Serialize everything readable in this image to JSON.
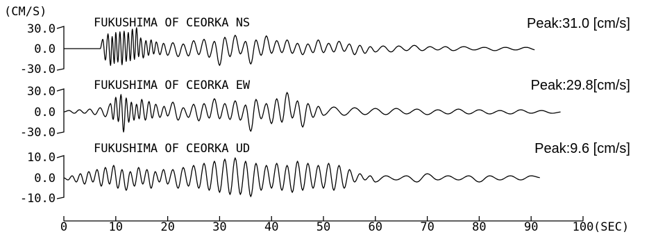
{
  "chart_data": {
    "type": "line",
    "ylabel": "(CM/S)",
    "xlabel": "(SEC)",
    "xlim": [
      0,
      100
    ],
    "x_ticks": [
      "0",
      "10",
      "20",
      "30",
      "40",
      "50",
      "60",
      "70",
      "80",
      "90",
      "100"
    ],
    "grid": false,
    "series": [
      {
        "name": "FUKUSHIMA OF CEORKA NS",
        "peak_label": "Peak:31.0 [cm/s]",
        "ylim": [
          -30,
          30
        ],
        "y_ticks": [
          "30.0",
          "0.0",
          "-30.0"
        ],
        "t": [
          0,
          7,
          7.5,
          8,
          8.5,
          9,
          9.3,
          9.7,
          10,
          10.4,
          10.8,
          11.2,
          11.6,
          12,
          12.4,
          12.8,
          13.2,
          13.6,
          14,
          14.4,
          14.8,
          15.3,
          15.8,
          16.3,
          16.8,
          17.3,
          17.8,
          18.5,
          19.2,
          20,
          21,
          22,
          23,
          24,
          25,
          26,
          27,
          28,
          29,
          30,
          31,
          32,
          33,
          34,
          35,
          36,
          37,
          38,
          39,
          40,
          41,
          42,
          43,
          44,
          45,
          46,
          47,
          48,
          49,
          50,
          51,
          52,
          53,
          54,
          55,
          56,
          57,
          58,
          59,
          60,
          61.5,
          63,
          64.5,
          66,
          67.5,
          69,
          70.5,
          72,
          73.5,
          75,
          77,
          79,
          81,
          83,
          85,
          87,
          89,
          91,
          93,
          95,
          97,
          99
        ],
        "v": [
          0,
          0,
          14,
          -17,
          22,
          -25,
          18,
          -22,
          24,
          -20,
          25,
          -24,
          26,
          -19,
          24,
          -18,
          29,
          -16,
          31,
          -12,
          16,
          -14,
          12,
          -10,
          13,
          -8,
          10,
          -9,
          8,
          -10,
          9,
          -12,
          7,
          -11,
          12,
          -9,
          14,
          -13,
          11,
          -25,
          17,
          -12,
          20,
          -8,
          11,
          -23,
          13,
          -10,
          19,
          -7,
          12,
          -6,
          13,
          -7,
          8,
          -9,
          7,
          -6,
          13,
          -6,
          8,
          -5,
          11,
          -4,
          7,
          -9,
          5,
          -7,
          3,
          -5,
          4,
          -5,
          4,
          -3,
          5,
          -3,
          3,
          -2,
          3,
          -3,
          3,
          -2,
          2,
          -3,
          2,
          -2,
          2,
          -2
        ]
      },
      {
        "name": "FUKUSHIMA OF CEORKA EW",
        "peak_label": "Peak:29.8[cm/s]",
        "ylim": [
          -30,
          30
        ],
        "y_ticks": [
          "30.0",
          "0.0",
          "-30.0"
        ],
        "t": [
          0,
          1,
          2,
          3,
          4,
          5,
          6,
          7,
          8,
          9,
          9.5,
          10,
          10.5,
          11,
          11.5,
          12,
          12.5,
          13,
          13.5,
          14,
          14.5,
          15,
          15.7,
          16.4,
          17,
          17.7,
          18.5,
          19.3,
          20,
          21,
          22,
          23,
          24,
          25,
          26,
          27,
          28,
          29,
          30,
          31,
          32,
          33,
          34,
          35,
          36,
          37,
          38,
          39,
          40,
          41,
          42,
          43,
          44,
          45,
          46,
          47,
          48,
          49,
          50,
          52,
          54,
          56,
          58,
          60,
          62,
          64,
          66,
          68,
          70,
          72,
          74,
          76,
          78,
          80,
          82,
          84,
          86,
          88,
          90,
          92,
          94,
          96,
          98,
          99
        ],
        "v": [
          0,
          2,
          -2,
          3,
          -2,
          4,
          -4,
          6,
          -7,
          12,
          -11,
          21,
          -14,
          25,
          -29,
          20,
          -15,
          14,
          -12,
          11,
          -10,
          18,
          -12,
          15,
          -9,
          11,
          -8,
          8,
          -6,
          14,
          -12,
          6,
          -8,
          11,
          -13,
          12,
          -9,
          19,
          -10,
          12,
          -11,
          16,
          -12,
          10,
          -28,
          18,
          -10,
          12,
          -17,
          19,
          -15,
          28,
          -9,
          16,
          -22,
          12,
          -8,
          8,
          -5,
          7,
          -5,
          6,
          -4,
          5,
          -4,
          5,
          -3,
          4,
          -4,
          3,
          -3,
          4,
          -3,
          3,
          -3,
          2,
          -3,
          3,
          -2,
          2,
          -2,
          0
        ]
      },
      {
        "name": "FUKUSHIMA OF CEORKA UD",
        "peak_label": "Peak:9.6 [cm/s]",
        "ylim": [
          -10,
          10
        ],
        "y_ticks": [
          "10.0",
          "0.0",
          "-10.0"
        ],
        "t": [
          0,
          0.8,
          1.6,
          2.4,
          3.2,
          4,
          4.8,
          5.6,
          6.4,
          7.2,
          8,
          8.8,
          9.6,
          10.4,
          11.2,
          12,
          12.8,
          13.6,
          14.4,
          15.2,
          16,
          16.8,
          17.6,
          18.4,
          19.2,
          20,
          21,
          22,
          23,
          24,
          25,
          26,
          27,
          28,
          29,
          30,
          31,
          32,
          33,
          34,
          35,
          36,
          37,
          38,
          39,
          40,
          41,
          42,
          43,
          44,
          45,
          46,
          47,
          48,
          49,
          50,
          51,
          52,
          53,
          54,
          55,
          56,
          57,
          58,
          59,
          60,
          62,
          64,
          66,
          68,
          70,
          72,
          74,
          76,
          78,
          80,
          82,
          84,
          86,
          88,
          90,
          92,
          94,
          96,
          98,
          99
        ],
        "v": [
          0,
          -1,
          1,
          -2,
          2,
          -3,
          3,
          -2,
          4,
          -4,
          5,
          -3,
          6,
          -5,
          4,
          -6,
          3,
          -4,
          5,
          -3,
          4,
          -5,
          3,
          -2,
          4,
          -3,
          4,
          -5,
          5,
          -4,
          6,
          -5,
          7,
          -6,
          8,
          -7,
          9,
          -8,
          9.6,
          -8,
          8,
          -9,
          7,
          -6,
          6,
          -5,
          7,
          -6,
          6,
          -7,
          8,
          -6,
          7,
          -5,
          6,
          -5,
          7,
          -6,
          6,
          -5,
          4,
          -2,
          2,
          -1,
          1,
          -2,
          1,
          -1,
          1,
          -2,
          2,
          -1,
          1,
          -1,
          1,
          -2,
          1,
          -1,
          1,
          -1,
          1,
          0
        ]
      }
    ]
  }
}
